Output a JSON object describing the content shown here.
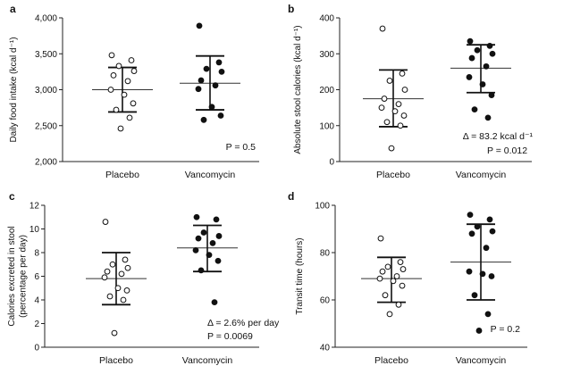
{
  "chart_data": [
    {
      "panel": "a",
      "type": "scatter",
      "ylabel": "Daily food intake (kcal d⁻¹)",
      "categories": [
        "Placebo",
        "Vancomycin"
      ],
      "ylim": [
        2000,
        4000
      ],
      "yticks": [
        2000,
        2500,
        3000,
        3500,
        4000
      ],
      "ytick_labels": [
        "2,000",
        "2,500",
        "3,000",
        "3,500",
        "4,000"
      ],
      "series": [
        {
          "name": "Placebo",
          "marker": "open",
          "values": [
            3480,
            3410,
            3330,
            3260,
            3200,
            3120,
            3000,
            2930,
            2810,
            2720,
            2610,
            2460
          ],
          "mean": 3000,
          "sd_low": 2690,
          "sd_high": 3310
        },
        {
          "name": "Vancomycin",
          "marker": "filled",
          "values": [
            3890,
            3380,
            3290,
            3250,
            3130,
            3060,
            3010,
            2760,
            2640,
            2580
          ],
          "mean": 3090,
          "sd_low": 2720,
          "sd_high": 3470
        }
      ],
      "annotations": [
        "P = 0.5"
      ]
    },
    {
      "panel": "b",
      "type": "scatter",
      "ylabel": "Absolute stool calories (kcal d⁻¹)",
      "categories": [
        "Placebo",
        "Vancomycin"
      ],
      "ylim": [
        0,
        400
      ],
      "yticks": [
        0,
        100,
        200,
        300,
        400
      ],
      "ytick_labels": [
        "0",
        "100",
        "200",
        "300",
        "400"
      ],
      "series": [
        {
          "name": "Placebo",
          "marker": "open",
          "values": [
            370,
            245,
            225,
            200,
            175,
            160,
            150,
            140,
            128,
            110,
            100,
            37
          ],
          "mean": 175,
          "sd_low": 97,
          "sd_high": 255
        },
        {
          "name": "Vancomycin",
          "marker": "filled",
          "values": [
            335,
            322,
            310,
            300,
            288,
            265,
            235,
            215,
            185,
            145,
            122
          ],
          "mean": 260,
          "sd_low": 192,
          "sd_high": 325
        }
      ],
      "annotations": [
        "Δ = 83.2 kcal d⁻¹",
        "P = 0.012"
      ]
    },
    {
      "panel": "c",
      "type": "scatter",
      "ylabel": "Calories excreted in stool (percentage per day)",
      "categories": [
        "Placebo",
        "Vancomycin"
      ],
      "ylim": [
        0,
        12
      ],
      "yticks": [
        0,
        2,
        4,
        6,
        8,
        10,
        12
      ],
      "ytick_labels": [
        "0",
        "2",
        "4",
        "6",
        "8",
        "10",
        "12"
      ],
      "series": [
        {
          "name": "Placebo",
          "marker": "open",
          "values": [
            10.6,
            7.4,
            7.0,
            6.7,
            6.4,
            6.2,
            5.9,
            5.0,
            4.8,
            4.3,
            4.0,
            1.2
          ],
          "mean": 5.8,
          "sd_low": 3.6,
          "sd_high": 8.0
        },
        {
          "name": "Vancomycin",
          "marker": "filled",
          "values": [
            11.0,
            10.8,
            9.7,
            9.4,
            9.2,
            8.8,
            8.2,
            7.8,
            7.3,
            6.5,
            3.8
          ],
          "mean": 8.4,
          "sd_low": 6.4,
          "sd_high": 10.3
        }
      ],
      "annotations": [
        "Δ = 2.6% per day",
        "P = 0.0069"
      ]
    },
    {
      "panel": "d",
      "type": "scatter",
      "ylabel": "Transit time (hours)",
      "categories": [
        "Placebo",
        "Vancomycin"
      ],
      "ylim": [
        40,
        100
      ],
      "yticks": [
        40,
        60,
        80,
        100
      ],
      "ytick_labels": [
        "40",
        "60",
        "80",
        "100"
      ],
      "series": [
        {
          "name": "Placebo",
          "marker": "open",
          "values": [
            86,
            76,
            74,
            73,
            72,
            70,
            69,
            68,
            66,
            62,
            58,
            54
          ],
          "mean": 69,
          "sd_low": 59,
          "sd_high": 78
        },
        {
          "name": "Vancomycin",
          "marker": "filled",
          "values": [
            96,
            94,
            91,
            89,
            88,
            82,
            72,
            71,
            70,
            62,
            54,
            47
          ],
          "mean": 76,
          "sd_low": 60,
          "sd_high": 92
        }
      ],
      "annotations": [
        "P = 0.2"
      ]
    }
  ]
}
